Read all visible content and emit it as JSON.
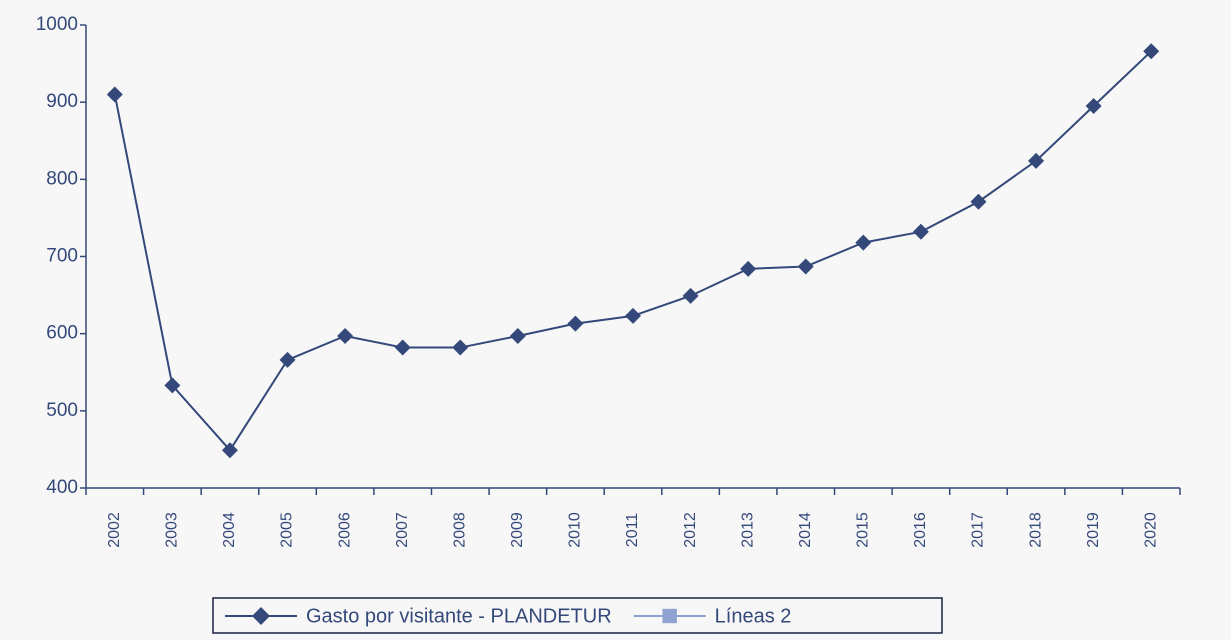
{
  "chart_data": {
    "type": "line",
    "categories": [
      "2002",
      "2003",
      "2004",
      "2005",
      "2006",
      "2007",
      "2008",
      "2009",
      "2010",
      "2011",
      "2012",
      "2013",
      "2014",
      "2015",
      "2016",
      "2017",
      "2018",
      "2019",
      "2020"
    ],
    "series": [
      {
        "name": "Gasto por visitante - PLANDETUR",
        "color": "#34497a",
        "marker": "diamond",
        "values": [
          910,
          533,
          449,
          566,
          597,
          582,
          582,
          597,
          613,
          623,
          649,
          684,
          687,
          718,
          732,
          771,
          824,
          895,
          966
        ]
      },
      {
        "name": "Líneas 2",
        "color": "#8ea3d0",
        "marker": "square",
        "values": [
          null,
          null,
          null,
          null,
          null,
          null,
          null,
          null,
          null,
          null,
          null,
          null,
          null,
          null,
          null,
          null,
          null,
          null,
          null
        ]
      }
    ],
    "ylim": [
      400,
      1000
    ],
    "yticks": [
      400,
      500,
      600,
      700,
      800,
      900,
      1000
    ],
    "grid": false,
    "legend": "bottom"
  }
}
